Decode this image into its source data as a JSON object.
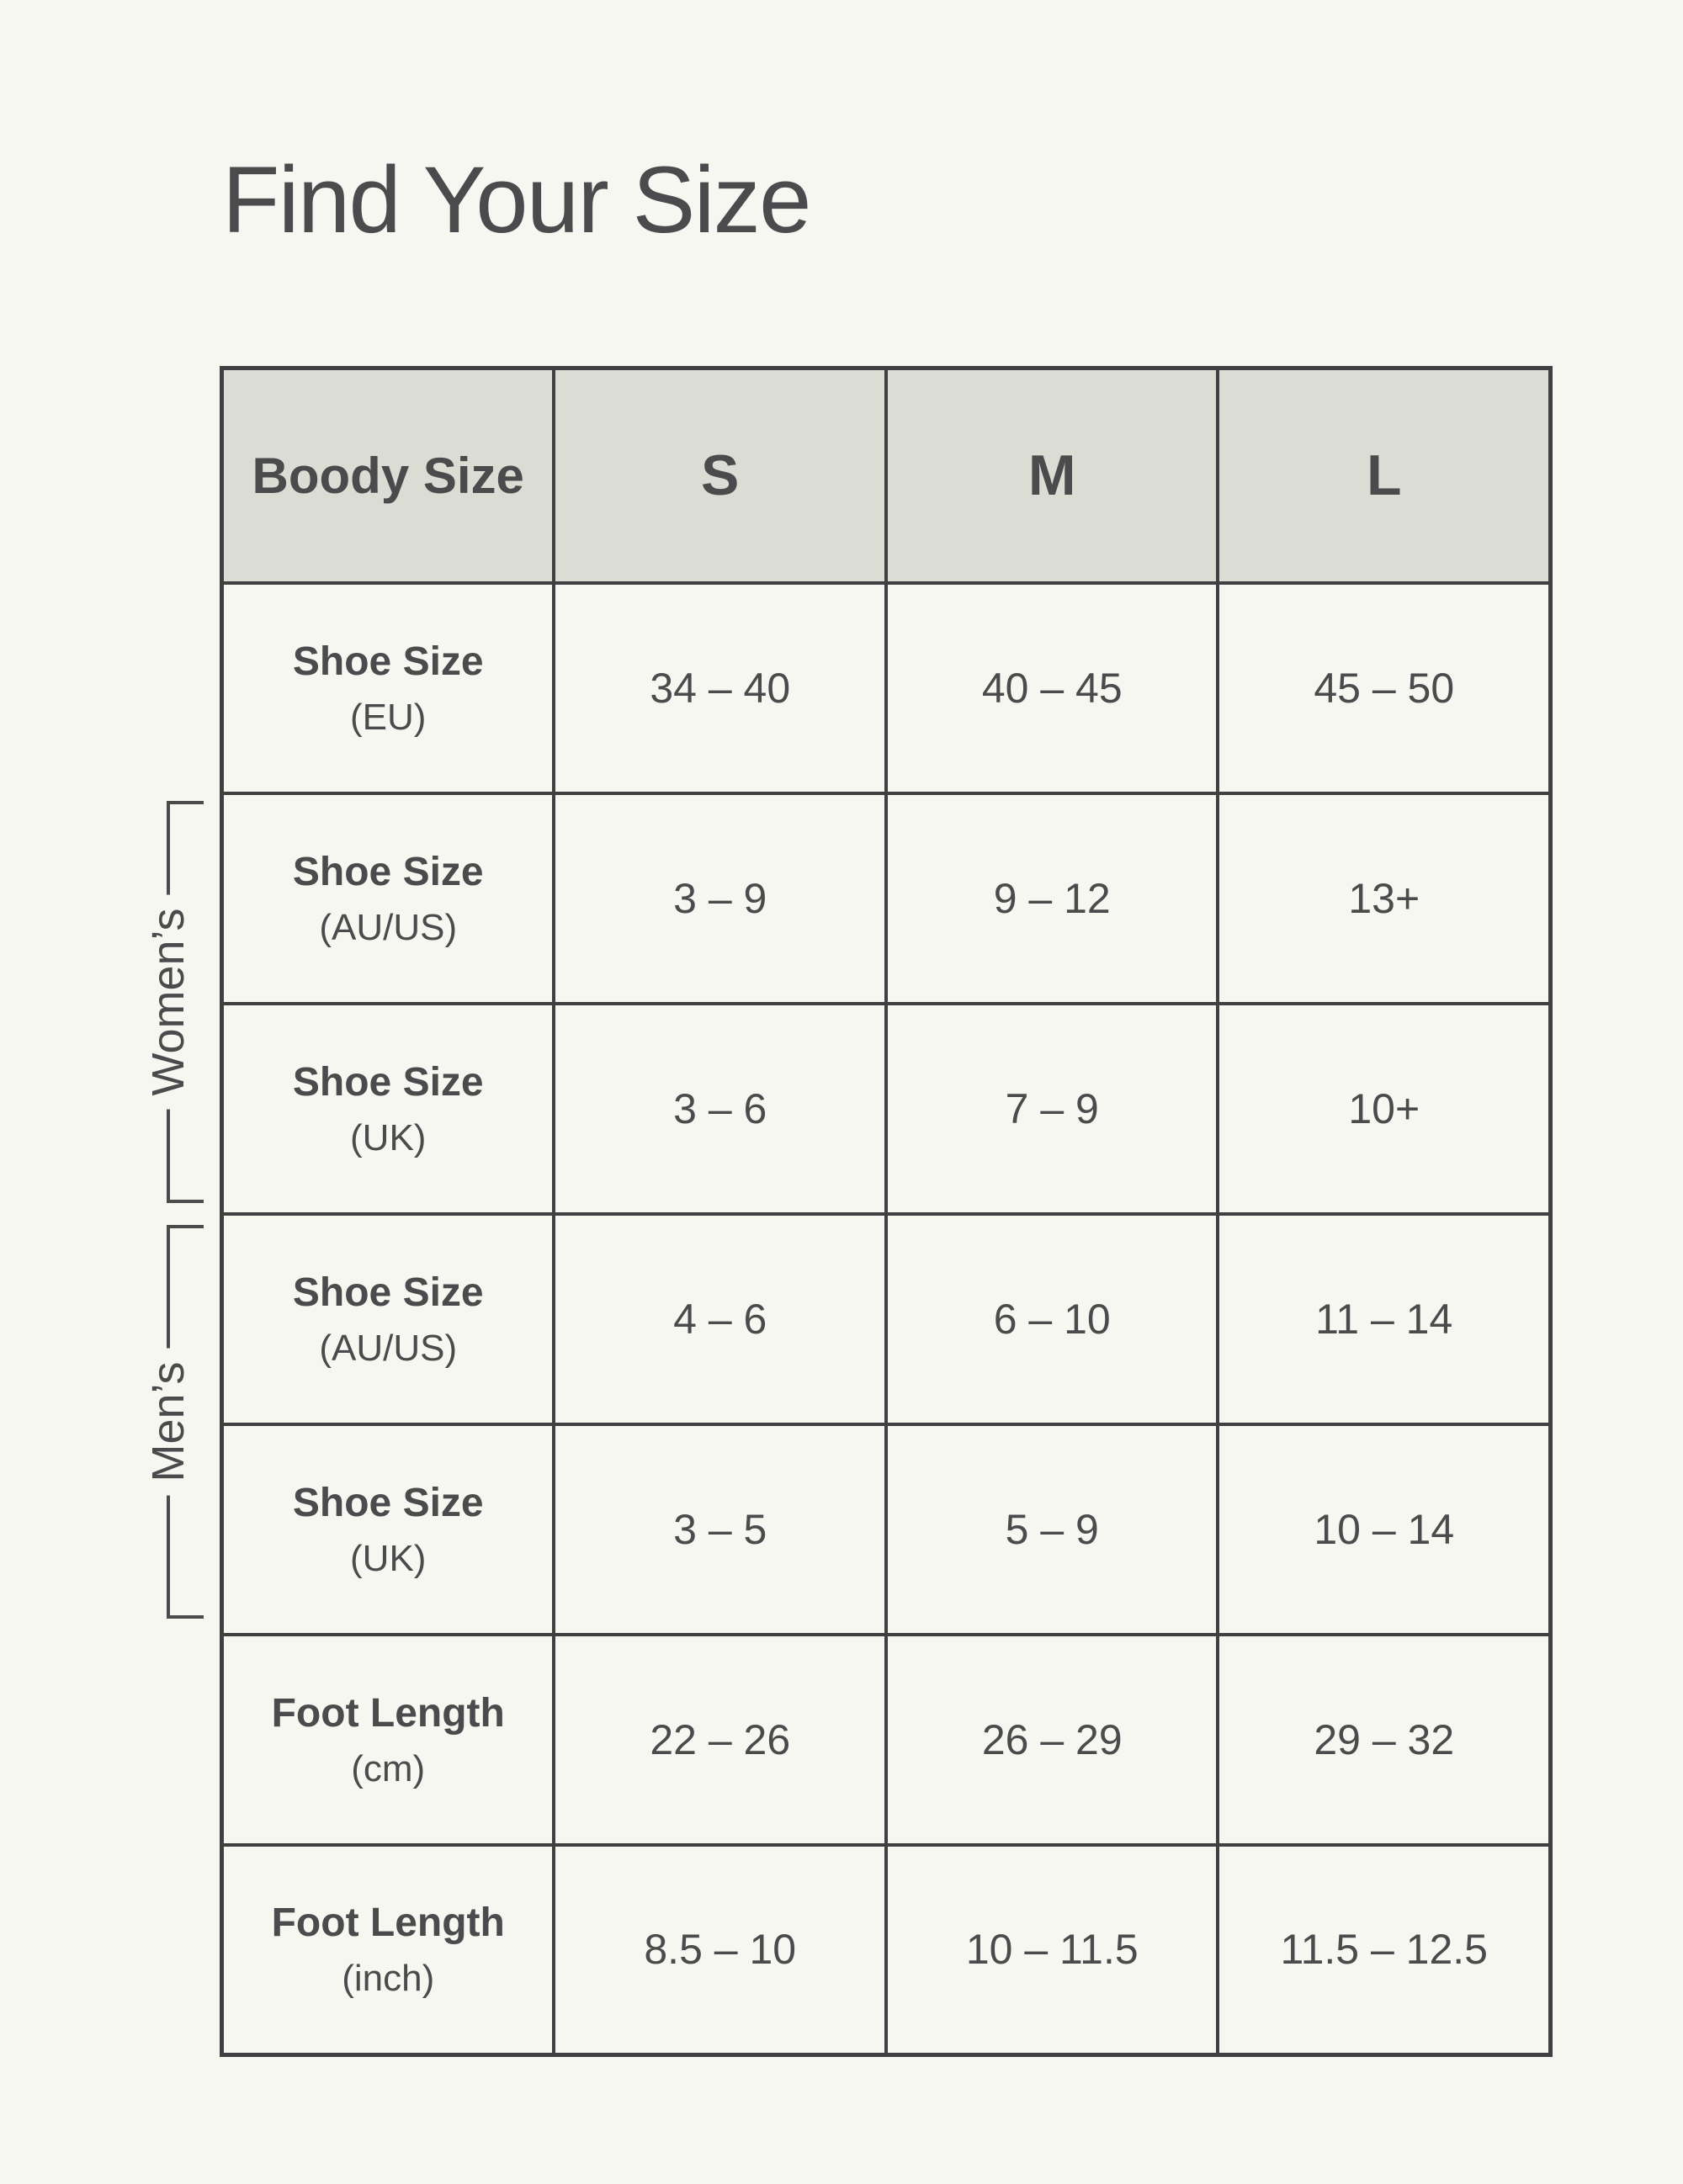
{
  "page": {
    "title": "Find Your Size"
  },
  "colors": {
    "page_background": "#f7f7f1",
    "header_background": "#dbdcd3",
    "border": "#404043",
    "text": "#4b4b4d"
  },
  "table": {
    "header": {
      "label": "Boody Size",
      "sizes": [
        "S",
        "M",
        "L"
      ]
    },
    "rows": [
      {
        "label": "Shoe Size",
        "unit": "(EU)",
        "values": [
          "34 – 40",
          "40 – 45",
          "45 – 50"
        ]
      },
      {
        "label": "Shoe Size",
        "unit": "(AU/US)",
        "values": [
          "3 – 9",
          "9 – 12",
          "13+"
        ]
      },
      {
        "label": "Shoe Size",
        "unit": "(UK)",
        "values": [
          "3 – 6",
          "7 – 9",
          "10+"
        ]
      },
      {
        "label": "Shoe Size",
        "unit": "(AU/US)",
        "values": [
          "4 – 6",
          "6 – 10",
          "11 – 14"
        ]
      },
      {
        "label": "Shoe Size",
        "unit": "(UK)",
        "values": [
          "3 – 5",
          "5 – 9",
          "10 – 14"
        ]
      },
      {
        "label": "Foot Length",
        "unit": "(cm)",
        "values": [
          "22 – 26",
          "26 – 29",
          "29 – 32"
        ]
      },
      {
        "label": "Foot Length",
        "unit": "(inch)",
        "values": [
          "8.5 – 10",
          "10 – 11.5",
          "11.5 – 12.5"
        ]
      }
    ]
  },
  "brackets": {
    "womens": "Women’s",
    "mens": "Men’s"
  },
  "chart_data": {
    "type": "table",
    "title": "Find Your Size",
    "columns": [
      "Boody Size",
      "S",
      "M",
      "L"
    ],
    "row_groups": [
      null,
      "Women’s",
      "Women’s",
      "Men’s",
      "Men’s",
      null,
      null
    ],
    "rows": [
      [
        "Shoe Size (EU)",
        "34 – 40",
        "40 – 45",
        "45 – 50"
      ],
      [
        "Shoe Size (AU/US)",
        "3 – 9",
        "9 – 12",
        "13+"
      ],
      [
        "Shoe Size (UK)",
        "3 – 6",
        "7 – 9",
        "10+"
      ],
      [
        "Shoe Size (AU/US)",
        "4 – 6",
        "6 – 10",
        "11 – 14"
      ],
      [
        "Shoe Size (UK)",
        "3 – 5",
        "5 – 9",
        "10 – 14"
      ],
      [
        "Foot Length (cm)",
        "22 – 26",
        "26 – 29",
        "29 – 32"
      ],
      [
        "Foot Length (inch)",
        "8.5 – 10",
        "10 – 11.5",
        "11.5 – 12.5"
      ]
    ]
  }
}
